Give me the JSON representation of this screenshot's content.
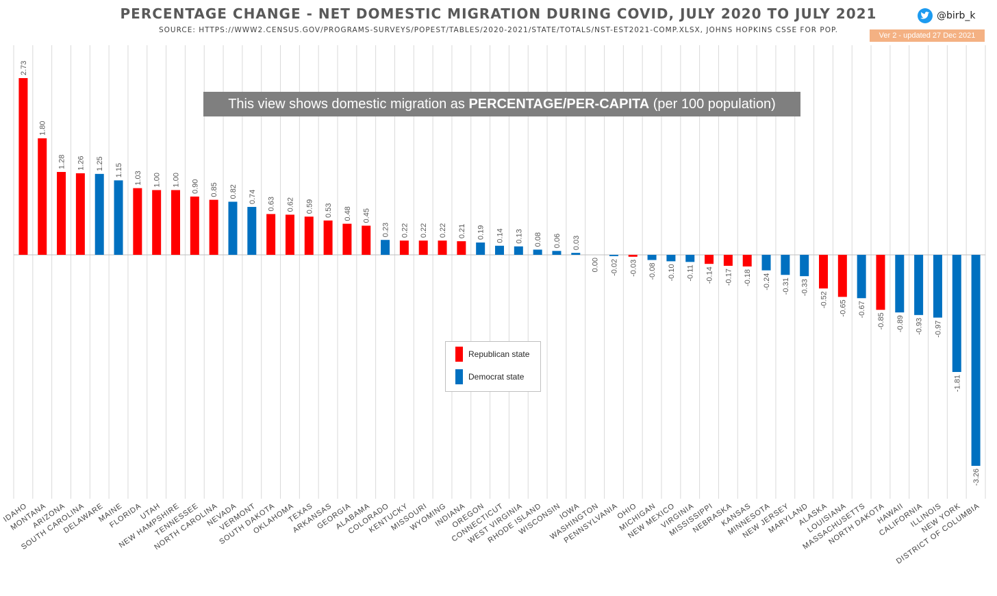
{
  "header": {
    "title": "PERCENTAGE CHANGE - NET DOMESTIC MIGRATION DURING COVID, JULY 2020 TO JULY 2021",
    "source": "SOURCE: HTTPS://WWW2.CENSUS.GOV/PROGRAMS-SURVEYS/POPEST/TABLES/2020-2021/STATE/TOTALS/NST-EST2021-COMP.XLSX, JOHNS HOPKINS CSSE FOR POP.",
    "twitter_handle": "@birb_k",
    "twitter_icon": "twitter-bird-icon",
    "version": "Ver 2 - updated 27 Dec 2021"
  },
  "banner": {
    "prefix": "This view shows domestic migration as ",
    "emphasis": "PERCENTAGE/PER-CAPITA",
    "suffix": " (per 100 population)"
  },
  "legend": {
    "republican_label": "Republican state",
    "democrat_label": "Democrat state"
  },
  "colors": {
    "republican": "#ff0000",
    "democrat": "#0070c0",
    "gridline": "#d9d9d9",
    "label_text": "#595959"
  },
  "chart_data": {
    "type": "bar",
    "title": "PERCENTAGE CHANGE - NET DOMESTIC MIGRATION DURING COVID, JULY 2020 TO JULY 2021",
    "xlabel": "",
    "ylabel": "",
    "ylim": [
      -3.26,
      2.73
    ],
    "grid": true,
    "legend_position": "center",
    "categories": [
      "IDAHO",
      "MONTANA",
      "ARIZONA",
      "SOUTH CAROLINA",
      "DELAWARE",
      "MAINE",
      "FLORIDA",
      "UTAH",
      "NEW HAMPSHIRE",
      "TENNESSEE",
      "NORTH CAROLINA",
      "NEVADA",
      "VERMONT",
      "SOUTH DAKOTA",
      "OKLAHOMA",
      "TEXAS",
      "ARKANSAS",
      "GEORGIA",
      "ALABAMA",
      "COLORADO",
      "KENTUCKY",
      "MISSOURI",
      "WYOMING",
      "INDIANA",
      "OREGON",
      "CONNECTICUT",
      "WEST VIRGINIA",
      "RHODE ISLAND",
      "WISCONSIN",
      "IOWA",
      "WASHINGTON",
      "PENNSYLVANIA",
      "OHIO",
      "MICHIGAN",
      "NEW MEXICO",
      "VIRGINIA",
      "MISSISSIPPI",
      "NEBRASKA",
      "KANSAS",
      "MINNESOTA",
      "NEW JERSEY",
      "MARYLAND",
      "ALASKA",
      "LOUISIANA",
      "MASSACHUSETTS",
      "NORTH DAKOTA",
      "HAWAII",
      "CALIFORNIA",
      "ILLINOIS",
      "NEW YORK",
      "DISTRICT OF COLUMBIA"
    ],
    "values": [
      2.73,
      1.8,
      1.28,
      1.26,
      1.25,
      1.15,
      1.03,
      1.0,
      1.0,
      0.9,
      0.85,
      0.82,
      0.74,
      0.63,
      0.62,
      0.59,
      0.53,
      0.48,
      0.45,
      0.23,
      0.22,
      0.22,
      0.22,
      0.21,
      0.19,
      0.14,
      0.13,
      0.08,
      0.06,
      0.03,
      0.0,
      -0.02,
      -0.03,
      -0.08,
      -0.1,
      -0.11,
      -0.14,
      -0.17,
      -0.18,
      -0.24,
      -0.31,
      -0.33,
      -0.52,
      -0.65,
      -0.67,
      -0.85,
      -0.89,
      -0.93,
      -0.97,
      -1.81,
      -3.26
    ],
    "value_labels": [
      "2.73",
      "1.80",
      "1.28",
      "1.26",
      "1.25",
      "1.15",
      "1.03",
      "1.00",
      "1.00",
      "0.90",
      "0.85",
      "0.82",
      "0.74",
      "0.63",
      "0.62",
      "0.59",
      "0.53",
      "0.48",
      "0.45",
      "0.23",
      "0.22",
      "0.22",
      "0.22",
      "0.21",
      "0.19",
      "0.14",
      "0.13",
      "0.08",
      "0.06",
      "0.03",
      "0.00",
      "-0.02",
      "-0.03",
      "-0.08",
      "-0.10",
      "-0.11",
      "-0.14",
      "-0.17",
      "-0.18",
      "-0.24",
      "-0.31",
      "-0.33",
      "-0.52",
      "-0.65",
      "-0.67",
      "-0.85",
      "-0.89",
      "-0.93",
      "-0.97",
      "-1.81",
      "-3.26"
    ],
    "party": [
      "R",
      "R",
      "R",
      "R",
      "D",
      "D",
      "R",
      "R",
      "R",
      "R",
      "R",
      "D",
      "D",
      "R",
      "R",
      "R",
      "R",
      "R",
      "R",
      "D",
      "R",
      "R",
      "R",
      "R",
      "D",
      "D",
      "D",
      "D",
      "D",
      "D",
      "D",
      "D",
      "R",
      "D",
      "D",
      "D",
      "R",
      "R",
      "R",
      "D",
      "D",
      "D",
      "R",
      "R",
      "D",
      "R",
      "D",
      "D",
      "D",
      "D",
      "D"
    ],
    "series": [
      {
        "name": "Republican state",
        "color": "#ff0000"
      },
      {
        "name": "Democrat state",
        "color": "#0070c0"
      }
    ]
  }
}
